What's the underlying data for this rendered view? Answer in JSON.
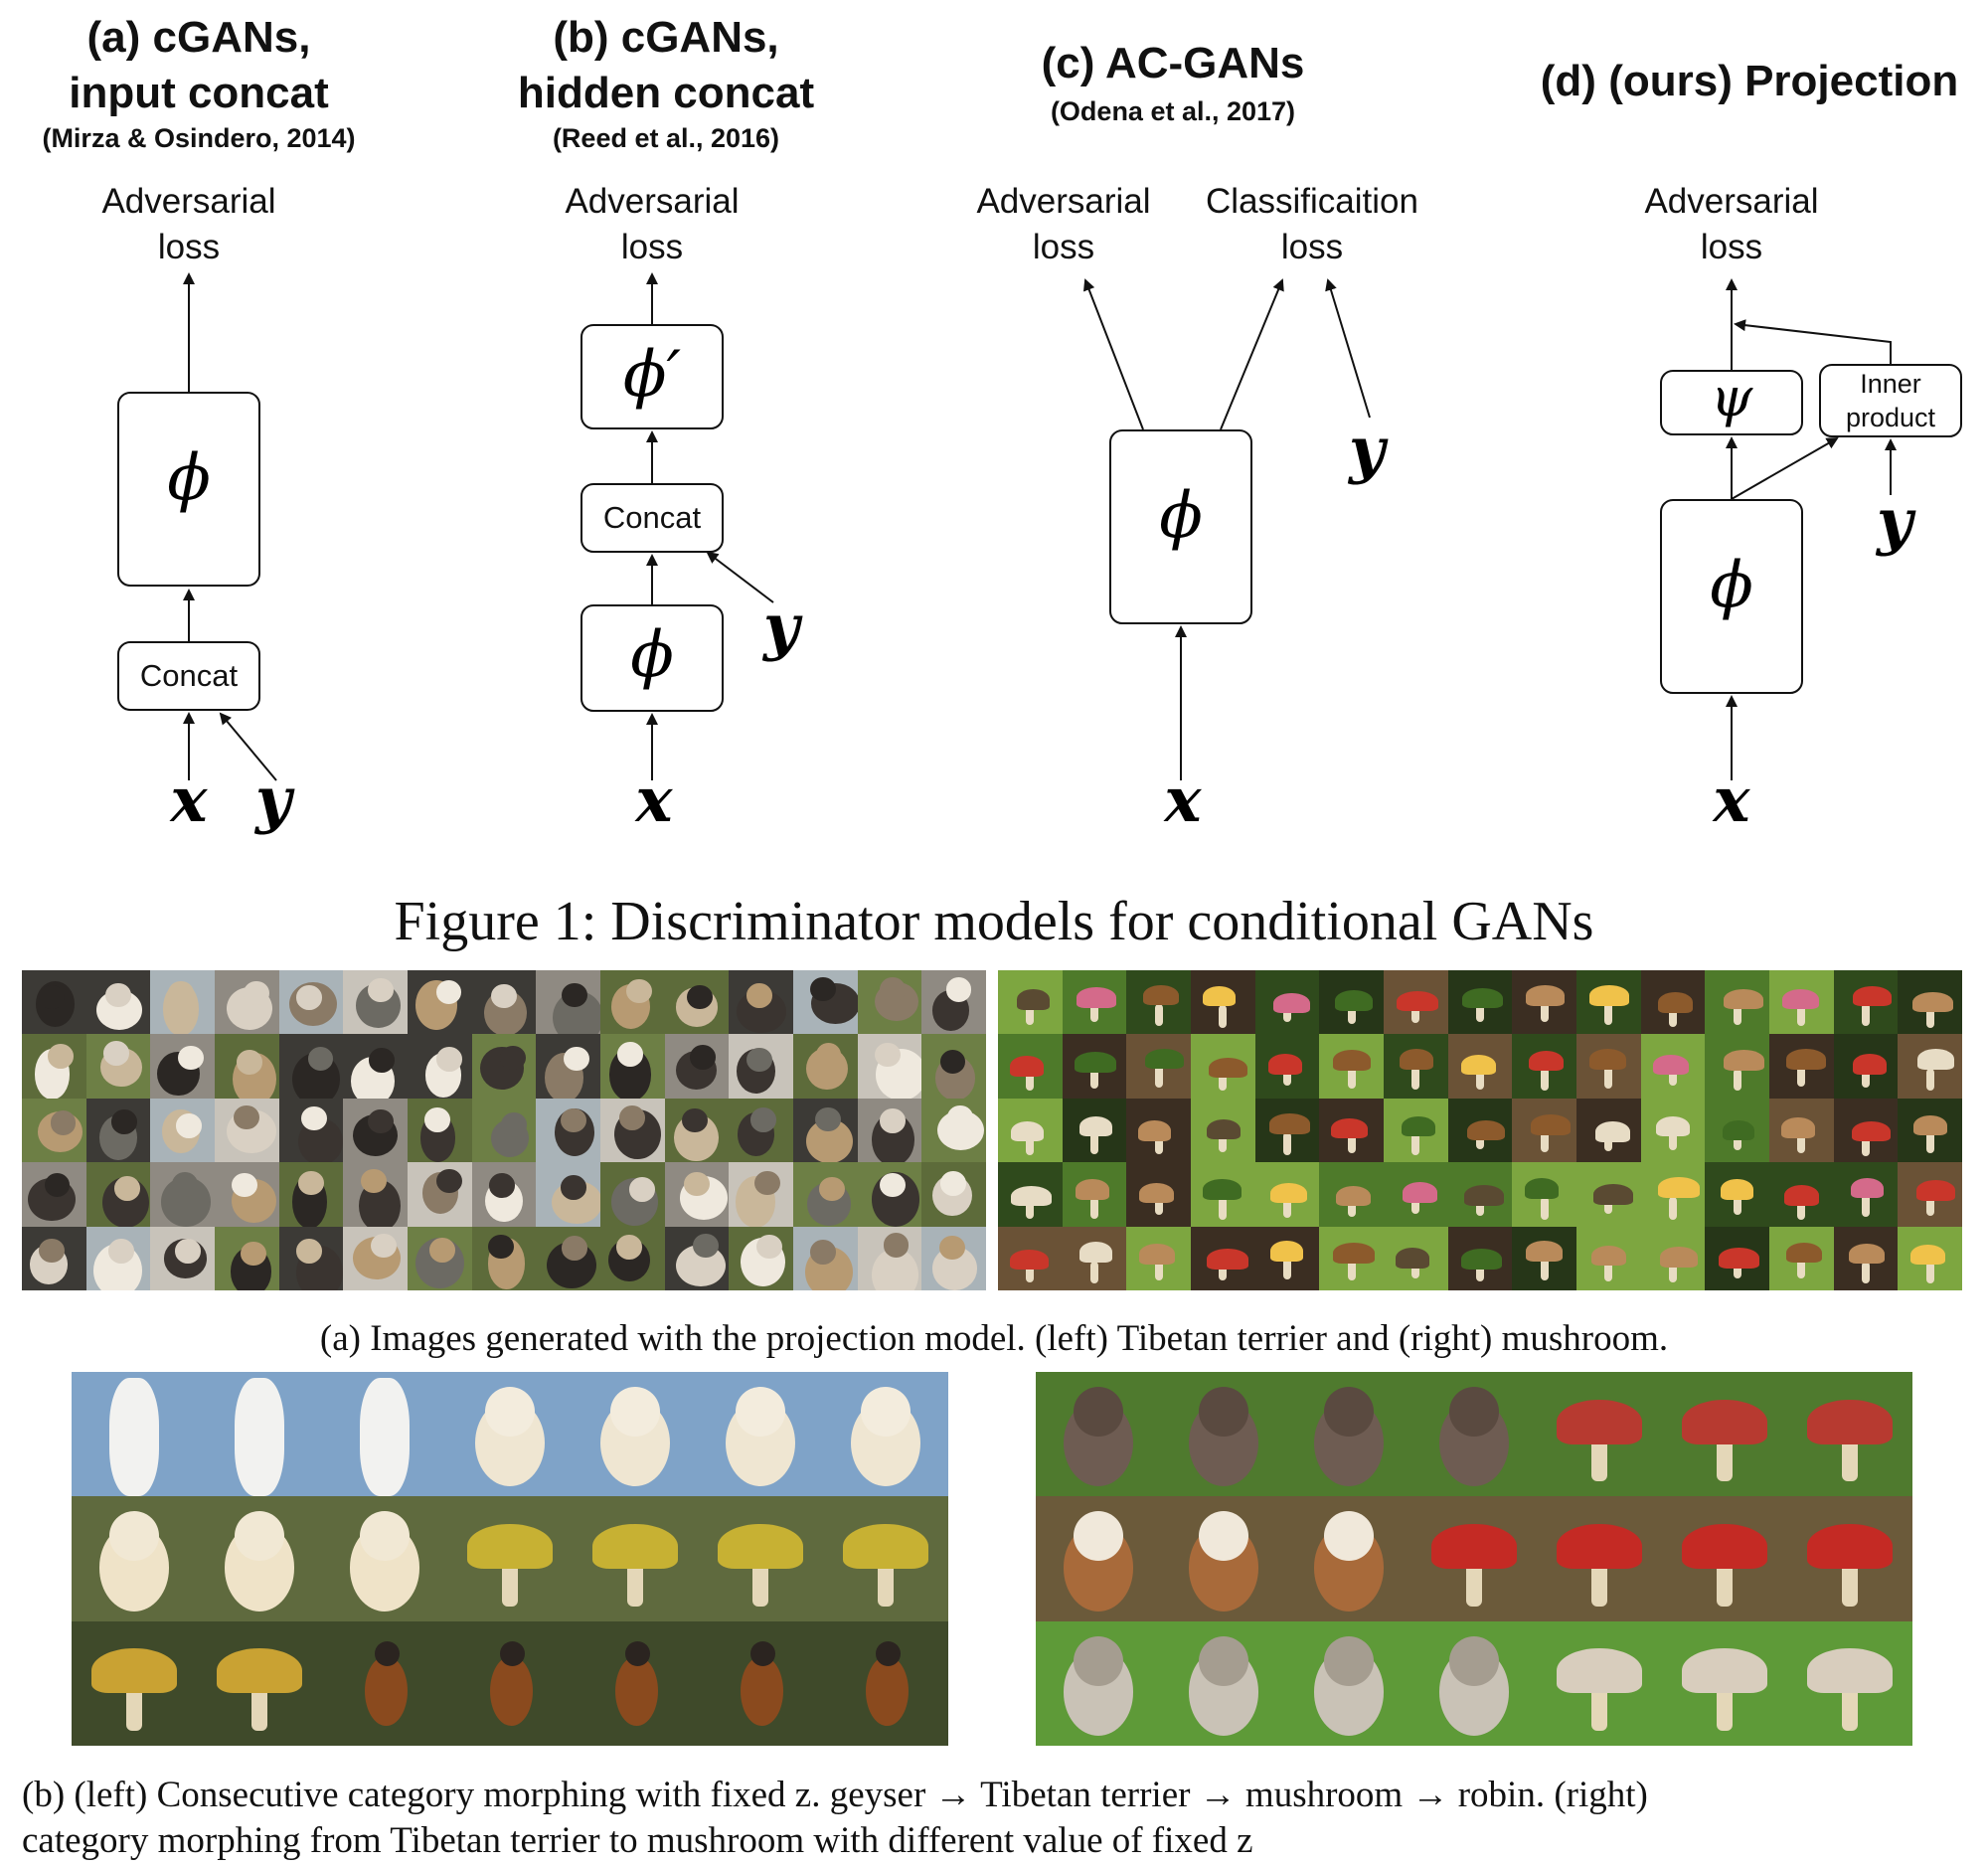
{
  "panels": [
    {
      "title": "(a) cGANs,\ninput concat",
      "citation": "(Mirza & Osindero, 2014)",
      "loss": "Adversarial\nloss",
      "box_phi": "ϕ",
      "box_concat": "Concat",
      "x": "x",
      "y": "y"
    },
    {
      "title": "(b) cGANs,\nhidden concat",
      "citation": "(Reed et al., 2016)",
      "loss": "Adversarial\nloss",
      "box_phi_prime": "ϕ′",
      "box_concat": "Concat",
      "box_phi": "ϕ",
      "x": "x",
      "y": "y"
    },
    {
      "title": "(c) AC-GANs",
      "citation": "(Odena et al., 2017)",
      "loss_adv": "Adversarial\nloss",
      "loss_cls": "Classificaition\nloss",
      "box_phi": "ϕ",
      "x": "x",
      "y": "y"
    },
    {
      "title": "(d) (ours) Projection",
      "loss": "Adversarial\nloss",
      "box_psi": "ψ",
      "box_inner": "Inner\nproduct",
      "box_phi": "ϕ",
      "x": "x",
      "y": "y"
    }
  ],
  "figure_caption": "Figure 1:  Discriminator models for conditional GANs",
  "caption_a": "(a) Images generated with the projection model. (left) Tibetan terrier and (right) mushroom.",
  "caption_b_line1": "(b) (left) Consecutive category morphing with fixed z. geyser → Tibetan terrier → mushroom → robin. (right)",
  "caption_b_line2": "category morphing from Tibetan terrier to mushroom with different value of fixed z",
  "colors": {
    "ink": "#111111",
    "dog_palette": [
      "#3a3430",
      "#d9d0c3",
      "#8a7a66",
      "#efe9de",
      "#2b2724",
      "#b79a72",
      "#6c6a63",
      "#c9b79a"
    ],
    "mush_palette": [
      "#c9362a",
      "#e7dcc5",
      "#8c5a2c",
      "#f0c24a",
      "#3f6b22",
      "#b98a5a",
      "#d46a8a",
      "#5a4a32"
    ]
  }
}
